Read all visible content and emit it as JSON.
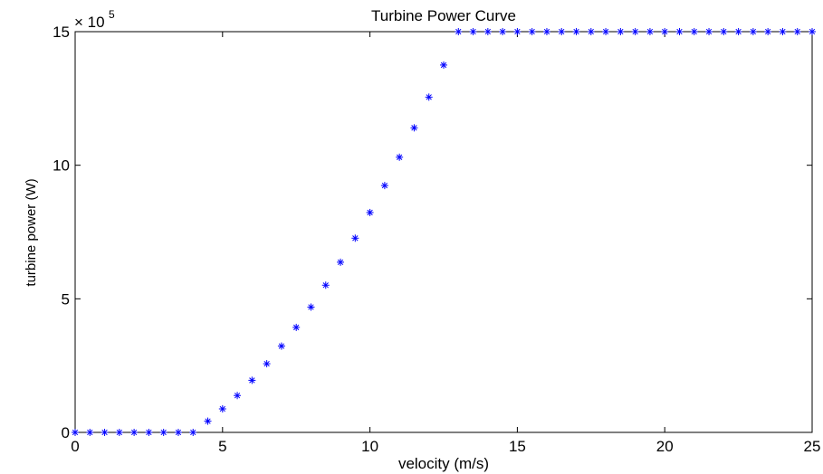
{
  "chart_data": {
    "type": "scatter",
    "title": "Turbine Power Curve",
    "xlabel": "velocity (m/s)",
    "ylabel": "turbine power (W)",
    "y_exponent_base": "× 10",
    "y_exponent_power": "5",
    "xlim": [
      0,
      25
    ],
    "ylim": [
      0,
      15
    ],
    "x_ticks": [
      "0",
      "5",
      "10",
      "15",
      "20",
      "25"
    ],
    "y_ticks": [
      "0",
      "5",
      "10",
      "15"
    ],
    "grid": false,
    "marker": "*",
    "marker_color": "#0000ff",
    "series": [
      {
        "x": [
          0,
          0.5,
          1,
          1.5,
          2,
          2.5,
          3,
          3.5,
          4,
          4.5,
          5,
          5.5,
          6,
          6.5,
          7,
          7.5,
          8,
          8.5,
          9,
          9.5,
          10,
          10.5,
          11,
          11.5,
          12,
          12.5,
          13,
          13.5,
          14,
          14.5,
          15,
          15.5,
          16,
          16.5,
          17,
          17.5,
          18,
          18.5,
          19,
          19.5,
          20,
          20.5,
          21,
          21.5,
          22,
          22.5,
          23,
          23.5,
          24,
          24.5,
          25
        ],
        "y": [
          0,
          0,
          0,
          0,
          0,
          0,
          0,
          0,
          0,
          0.42,
          0.88,
          1.38,
          1.95,
          2.57,
          3.23,
          3.93,
          4.69,
          5.51,
          6.37,
          7.27,
          8.23,
          9.24,
          10.3,
          11.4,
          12.55,
          13.75,
          15,
          15,
          15,
          15,
          15,
          15,
          15,
          15,
          15,
          15,
          15,
          15,
          15,
          15,
          15,
          15,
          15,
          15,
          15,
          15,
          15,
          15,
          15,
          15,
          15
        ]
      }
    ]
  }
}
